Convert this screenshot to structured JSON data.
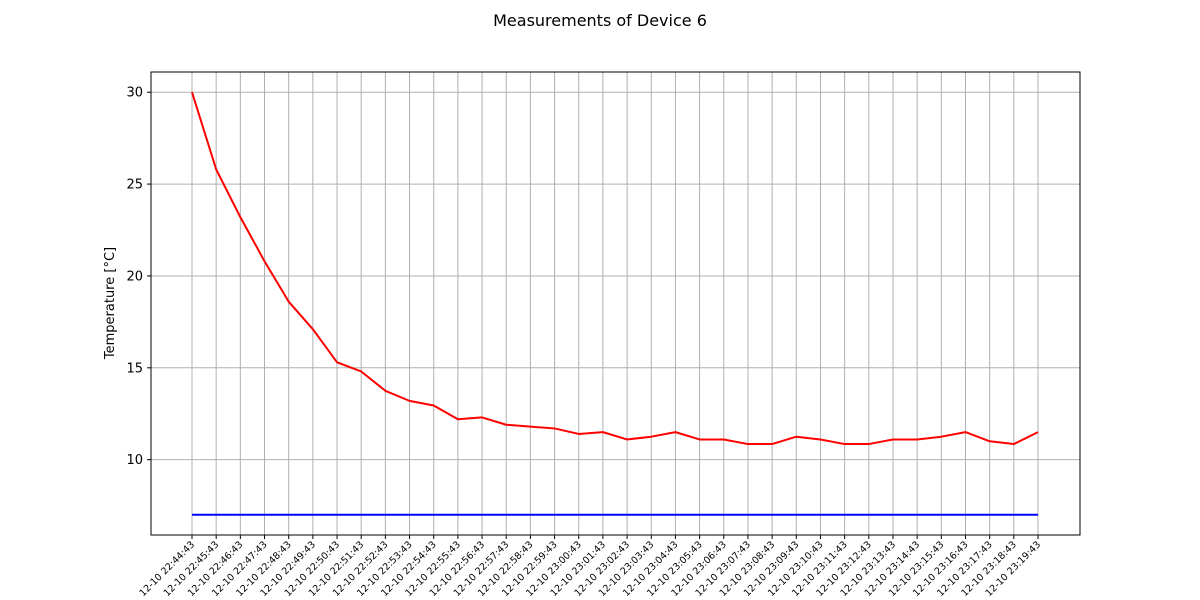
{
  "chart_data": {
    "type": "line",
    "title": "Measurements of Device 6",
    "xlabel": "",
    "ylabel": "Temperature [°C]",
    "ylim": [
      5.9,
      31.1
    ],
    "yticks": [
      10,
      15,
      20,
      25,
      30
    ],
    "grid": true,
    "x": [
      "12-10 22:44:43",
      "12-10 22:45:43",
      "12-10 22:46:43",
      "12-10 22:47:43",
      "12-10 22:48:43",
      "12-10 22:49:43",
      "12-10 22:50:43",
      "12-10 22:51:43",
      "12-10 22:52:43",
      "12-10 22:53:43",
      "12-10 22:54:43",
      "12-10 22:55:43",
      "12-10 22:56:43",
      "12-10 22:57:43",
      "12-10 22:58:43",
      "12-10 22:59:43",
      "12-10 23:00:43",
      "12-10 23:01:43",
      "12-10 23:02:43",
      "12-10 23:03:43",
      "12-10 23:04:43",
      "12-10 23:05:43",
      "12-10 23:06:43",
      "12-10 23:07:43",
      "12-10 23:08:43",
      "12-10 23:09:43",
      "12-10 23:10:43",
      "12-10 23:11:43",
      "12-10 23:12:43",
      "12-10 23:13:43",
      "12-10 23:14:43",
      "12-10 23:15:43",
      "12-10 23:16:43",
      "12-10 23:17:43",
      "12-10 23:18:43",
      "12-10 23:19:43"
    ],
    "series": [
      {
        "color": "#ff0000",
        "values": [
          30.0,
          25.8,
          23.2,
          20.8,
          18.6,
          17.1,
          15.3,
          14.8,
          13.75,
          13.2,
          12.95,
          12.2,
          12.3,
          11.9,
          11.8,
          11.7,
          11.4,
          11.5,
          11.1,
          11.25,
          11.5,
          11.1,
          11.1,
          10.85,
          10.85,
          11.25,
          11.1,
          10.85,
          10.85,
          11.1,
          11.1,
          11.25,
          11.5,
          11.0,
          10.85,
          11.5
        ]
      },
      {
        "color": "#0000ff",
        "values": [
          7.0,
          7.0,
          7.0,
          7.0,
          7.0,
          7.0,
          7.0,
          7.0,
          7.0,
          7.0,
          7.0,
          7.0,
          7.0,
          7.0,
          7.0,
          7.0,
          7.0,
          7.0,
          7.0,
          7.0,
          7.0,
          7.0,
          7.0,
          7.0,
          7.0,
          7.0,
          7.0,
          7.0,
          7.0,
          7.0,
          7.0,
          7.0,
          7.0,
          7.0,
          7.0,
          7.0
        ]
      }
    ]
  }
}
